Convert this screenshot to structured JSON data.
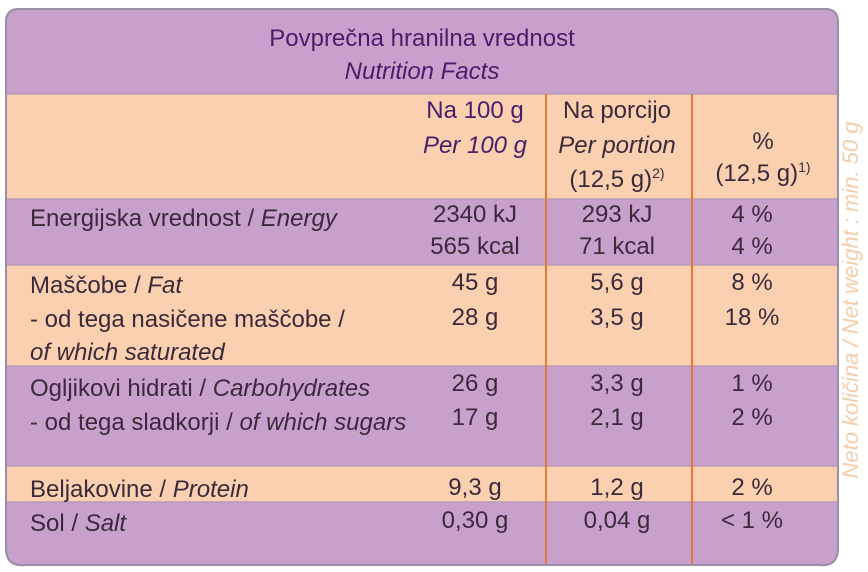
{
  "colors": {
    "purple_band": "#c8a0cc",
    "peach_band": "#fbd0b0",
    "border": "#9a8fa8",
    "divider": "#e07a36"
  },
  "header": {
    "title_sl": "Povprečna hranilna vrednost",
    "title_en": "Nutrition Facts"
  },
  "columns": {
    "per100": {
      "sl": "Na 100 g",
      "en": "Per 100 g"
    },
    "portion": {
      "sl": "Na porcijo",
      "en": "Per portion",
      "size": "(12,5 g)",
      "note": "2)"
    },
    "percent": {
      "symbol": "%",
      "size": "(12,5 g)",
      "note": "1)"
    }
  },
  "rows": {
    "energy": {
      "sl": "Energijska vrednost /",
      "en": "Energy",
      "v100_kj": "2340 kJ",
      "v100_kcal": "565 kcal",
      "vp_kj": "293 kJ",
      "vp_kcal": "71 kcal",
      "pct_kj": "4 %",
      "pct_kcal": "4 %"
    },
    "fat": {
      "sl": "Maščobe /",
      "en": "Fat",
      "v100": "45 g",
      "vp": "5,6 g",
      "pct": "8 %"
    },
    "saturated": {
      "sl": "- od tega nasičene maščobe /",
      "en": "of which saturated",
      "v100": "28 g",
      "vp": "3,5 g",
      "pct": "18 %"
    },
    "carbs": {
      "sl": "Ogljikovi hidrati /",
      "en": "Carbohydrates",
      "v100": "26 g",
      "vp": "3,3 g",
      "pct": "1 %"
    },
    "sugars": {
      "sl": "- od tega sladkorji /",
      "en": "of which sugars",
      "v100": "17 g",
      "vp": "2,1 g",
      "pct": "2 %"
    },
    "protein": {
      "sl": "Beljakovine /",
      "en": "Protein",
      "v100": "9,3 g",
      "vp": "1,2 g",
      "pct": "2 %"
    },
    "salt": {
      "sl": "Sol /",
      "en": "Salt",
      "v100": "0,30 g",
      "vp": "0,04 g",
      "pct": "< 1 %"
    }
  },
  "side_text": "Neto količina / Net weight : min. 50 g"
}
